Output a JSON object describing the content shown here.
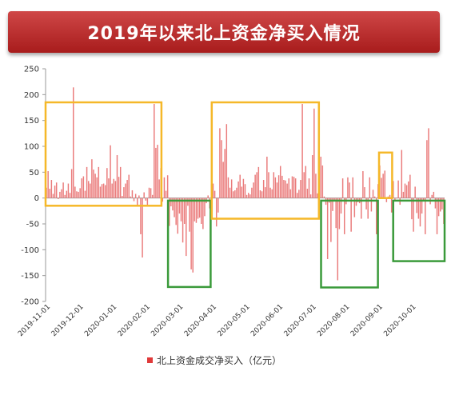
{
  "header": {
    "title": "2019年以来北上资金净买入情况"
  },
  "colors": {
    "bar": "#ea7b7b",
    "highlight_inflow": "#f5b829",
    "highlight_outflow": "#3a9a3a",
    "title_bg": "#b82626"
  },
  "chart_data": {
    "type": "bar",
    "title": "2019年以来北上资金净买入情况",
    "xlabel": "",
    "ylabel": "",
    "ylim": [
      -200,
      250
    ],
    "y_ticks": [
      250,
      200,
      150,
      100,
      50,
      0,
      -50,
      -100,
      -150,
      -200
    ],
    "x_tick_labels": [
      "2019-11-01",
      "2019-12-01",
      "2020-01-01",
      "2020-02-01",
      "2020-03-01",
      "2020-04-01",
      "2020-05-01",
      "2020-06-01",
      "2020-07-01",
      "2020-08-01",
      "2020-09-01",
      "2020-10-01"
    ],
    "legend": {
      "label": "北上资金成交净买入（亿元）",
      "position": "bottom"
    },
    "grid": false,
    "series": [
      {
        "name": "北上资金成交净买入（亿元）",
        "color": "#ea7b7b",
        "values": [
          20,
          52,
          18,
          35,
          8,
          24,
          30,
          -2,
          12,
          17,
          30,
          6,
          14,
          28,
          10,
          56,
          214,
          22,
          13,
          12,
          19,
          38,
          42,
          14,
          60,
          33,
          28,
          75,
          55,
          47,
          40,
          60,
          22,
          27,
          28,
          25,
          58,
          38,
          102,
          28,
          37,
          33,
          83,
          41,
          60,
          4,
          21,
          28,
          35,
          45,
          3,
          15,
          -6,
          8,
          -15,
          5,
          -70,
          -115,
          11,
          -5,
          -13,
          20,
          19,
          6,
          182,
          97,
          103,
          36,
          58,
          -7,
          40,
          14,
          44,
          -54,
          -16,
          -24,
          -37,
          -52,
          -69,
          -30,
          -45,
          -86,
          -50,
          -112,
          -15,
          -65,
          -138,
          -144,
          -45,
          -48,
          -40,
          -38,
          -50,
          -60,
          -35,
          -10,
          5,
          -20,
          27,
          28,
          14,
          -55,
          -28,
          135,
          112,
          70,
          95,
          143,
          40,
          20,
          36,
          13,
          15,
          20,
          32,
          45,
          22,
          37,
          27,
          6,
          10,
          7,
          20,
          30,
          45,
          50,
          60,
          15,
          13,
          35,
          21,
          80,
          50,
          20,
          17,
          50,
          40,
          30,
          44,
          62,
          43,
          35,
          34,
          28,
          38,
          17,
          42,
          41,
          38,
          10,
          16,
          35,
          182,
          50,
          62,
          18,
          38,
          7,
          83,
          173,
          47,
          9,
          55,
          80,
          63,
          3,
          -13,
          -118,
          -9,
          -85,
          -25,
          -4,
          -58,
          -159,
          -60,
          -30,
          38,
          -70,
          -12,
          40,
          30,
          -65,
          40,
          -37,
          -15,
          -8,
          -10,
          -40,
          52,
          21,
          -22,
          -40,
          40,
          -26,
          16,
          3,
          -70,
          27,
          63,
          39,
          47,
          53,
          -8,
          3,
          6,
          -28,
          33,
          -4,
          -1,
          34,
          -13,
          93,
          12,
          28,
          25,
          32,
          45,
          -41,
          -65,
          22,
          -29,
          -40,
          -55,
          -30,
          -5,
          -70,
          112,
          135,
          -12,
          6,
          12,
          -20,
          -70,
          -35,
          -26,
          -22,
          -50
        ]
      }
    ],
    "highlight_boxes": [
      {
        "color": "#f5b829",
        "x_from": "2019-11-01",
        "x_to": "2020-02-15",
        "y_from": -15,
        "y_to": 185
      },
      {
        "color": "#3a9a3a",
        "x_from": "2020-02-21",
        "x_to": "2020-03-31",
        "y_from": -172,
        "y_to": -5
      },
      {
        "color": "#f5b829",
        "x_from": "2020-04-01",
        "x_to": "2020-07-08",
        "y_from": -40,
        "y_to": 185
      },
      {
        "color": "#3a9a3a",
        "x_from": "2020-07-10",
        "x_to": "2020-08-31",
        "y_from": -173,
        "y_to": -5
      },
      {
        "color": "#f5b829",
        "x_from": "2020-09-01",
        "x_to": "2020-09-13",
        "y_from": 0,
        "y_to": 88
      },
      {
        "color": "#3a9a3a",
        "x_from": "2020-09-14",
        "x_to": "2020-10-31",
        "y_from": -122,
        "y_to": -5
      }
    ]
  }
}
